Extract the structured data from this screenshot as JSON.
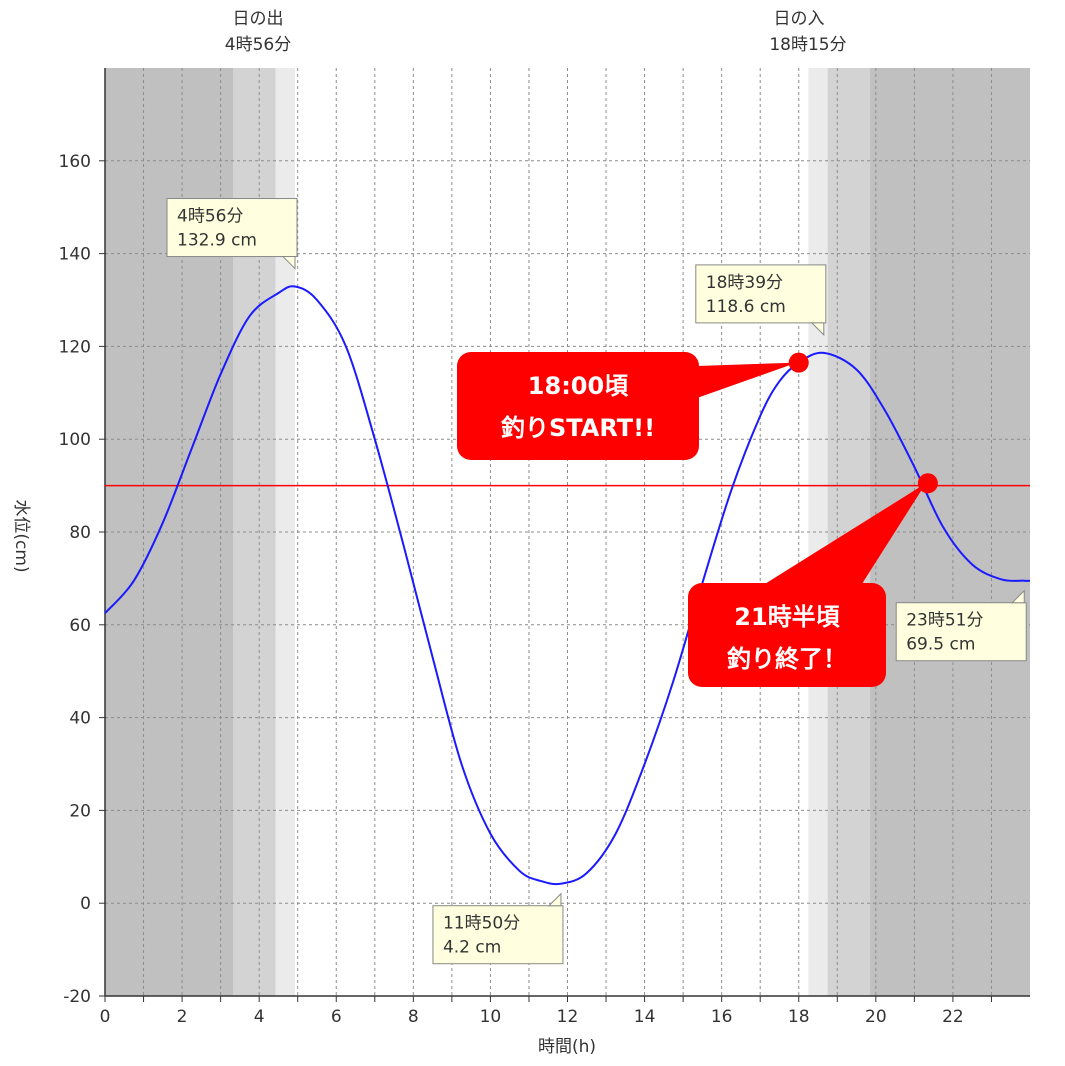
{
  "chart_data": {
    "type": "line",
    "xlabel": "時間(h)",
    "ylabel": "水位(cm)",
    "xlim": [
      0,
      24
    ],
    "ylim": [
      -20,
      180
    ],
    "x_ticks": [
      0,
      2,
      4,
      6,
      8,
      10,
      12,
      14,
      16,
      18,
      20,
      22
    ],
    "y_ticks": [
      -20,
      0,
      20,
      40,
      60,
      80,
      100,
      120,
      140,
      160
    ],
    "grid": true,
    "series": [
      {
        "color": "#1a1aff",
        "x": [
          0,
          0.75,
          1.5,
          2.25,
          3.0,
          3.75,
          4.5,
          4.93,
          5.5,
          6.25,
          7.0,
          7.75,
          8.5,
          9.25,
          10.0,
          10.75,
          11.3,
          11.83,
          12.5,
          13.25,
          14.0,
          14.75,
          15.5,
          16.25,
          17.0,
          17.5,
          18.0,
          18.65,
          19.5,
          20.25,
          21.0,
          21.75,
          22.5,
          23.25,
          23.85,
          24.0
        ],
        "y": [
          62.5,
          69.5,
          82,
          98,
          114,
          126.5,
          131.5,
          132.9,
          130,
          120,
          100,
          77,
          53,
          30,
          15,
          7,
          4.8,
          4.2,
          6.5,
          15,
          30,
          48,
          69,
          89,
          105,
          112.5,
          116.5,
          118.6,
          115,
          106,
          94,
          81,
          73,
          69.8,
          69.5,
          69.5
        ]
      }
    ],
    "reference_line": {
      "y": 90,
      "color": "#ff0000"
    },
    "sun": {
      "sunrise_title": "日の出",
      "sunrise_time": "4時56分",
      "sunrise_hour": 4.93,
      "sunset_title": "日の入",
      "sunset_time": "18時15分",
      "sunset_hour": 18.25,
      "night_color": "#c0c0c0",
      "twilight_color": "#d3d3d3",
      "dawn_color": "#ebebeb",
      "day_color": "#ffffff"
    },
    "annotations": [
      {
        "type": "peak",
        "time": "4時56分",
        "value": "132.9 cm",
        "x": 4.93,
        "y": 132.9,
        "pointer": "bottom-right"
      },
      {
        "type": "peak",
        "time": "18時39分",
        "value": "118.6 cm",
        "x": 18.65,
        "y": 118.6,
        "pointer": "bottom-right"
      },
      {
        "type": "trough",
        "time": "11時50分",
        "value": "4.2 cm",
        "x": 11.83,
        "y": 4.2,
        "pointer": "top-right"
      },
      {
        "type": "trough",
        "time": "23時51分",
        "value": "69.5 cm",
        "x": 23.85,
        "y": 69.5,
        "pointer": "top-right"
      }
    ],
    "highlights": [
      {
        "line1": "18:00頃",
        "line2": "釣りSTART!!",
        "x": 18.0,
        "y": 116.5,
        "color": "#ff0000"
      },
      {
        "line1": "21時半頃",
        "line2": "釣り終了！",
        "x": 21.35,
        "y": 90.5,
        "color": "#ff0000"
      }
    ]
  }
}
